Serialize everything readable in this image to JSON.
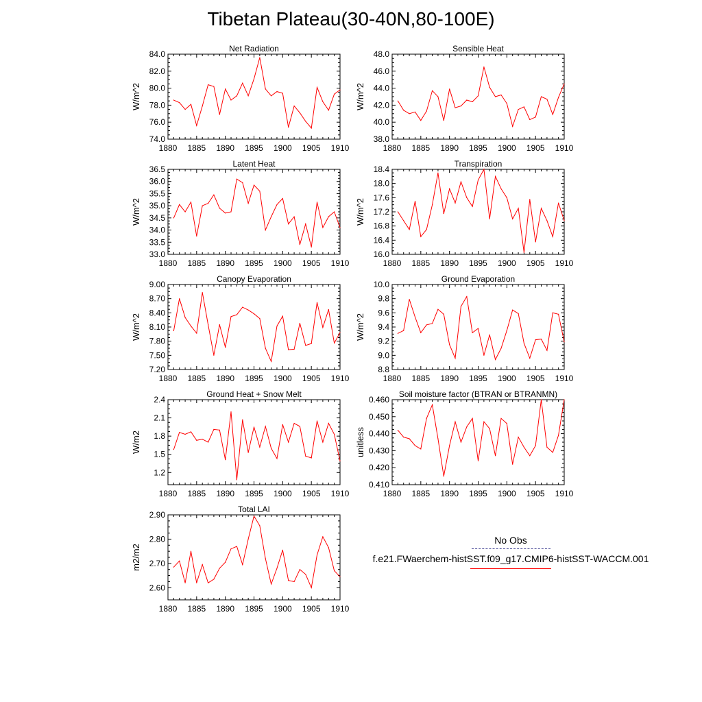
{
  "title": "Tibetan Plateau(30-40N,80-100E)",
  "legend": {
    "obs_label": "No Obs",
    "model_label": "f.e21.FWaerchem-histSST.f09_g17.CMIP6-histSST-WACCM.001",
    "obs_color": "#3b3b8f",
    "model_color": "#ff0000"
  },
  "chart_data": [
    {
      "type": "line",
      "title": "Net Radiation",
      "xlabel": "",
      "ylabel": "W/m^2",
      "xlim": [
        1880,
        1910
      ],
      "ylim": [
        74,
        84
      ],
      "yticks": [
        74,
        76,
        78,
        80,
        82,
        84
      ],
      "ytick_labels": [
        "74.0",
        "76.0",
        "78.0",
        "80.0",
        "82.0",
        "84.0"
      ],
      "xticks": [
        1880,
        1885,
        1890,
        1895,
        1900,
        1905,
        1910
      ],
      "xtick_labels": [
        "1880",
        "1885",
        "1890",
        "1895",
        "1900",
        "1905",
        "1910"
      ],
      "x": [
        1881,
        1882,
        1883,
        1884,
        1885,
        1886,
        1887,
        1888,
        1889,
        1890,
        1891,
        1892,
        1893,
        1894,
        1895,
        1896,
        1897,
        1898,
        1899,
        1900,
        1901,
        1902,
        1903,
        1904,
        1905,
        1906,
        1907,
        1908,
        1909,
        1910
      ],
      "series": [
        {
          "values": [
            78.6,
            78.3,
            77.5,
            78.1,
            75.6,
            77.9,
            80.4,
            80.2,
            76.9,
            79.9,
            78.6,
            79.1,
            80.6,
            79.1,
            81.1,
            83.6,
            79.9,
            79.1,
            79.6,
            79.4,
            75.4,
            77.9,
            77.1,
            76.1,
            75.3,
            80.1,
            78.4,
            77.4,
            79.3,
            79.8
          ],
          "color": "#ff0000"
        }
      ]
    },
    {
      "type": "line",
      "title": "Sensible Heat",
      "xlabel": "",
      "ylabel": "W/m^2",
      "xlim": [
        1880,
        1910
      ],
      "ylim": [
        38,
        48
      ],
      "yticks": [
        38,
        40,
        42,
        44,
        46,
        48
      ],
      "ytick_labels": [
        "38.0",
        "40.0",
        "42.0",
        "44.0",
        "46.0",
        "48.0"
      ],
      "xticks": [
        1880,
        1885,
        1890,
        1895,
        1900,
        1905,
        1910
      ],
      "xtick_labels": [
        "1880",
        "1885",
        "1890",
        "1895",
        "1900",
        "1905",
        "1910"
      ],
      "x": [
        1881,
        1882,
        1883,
        1884,
        1885,
        1886,
        1887,
        1888,
        1889,
        1890,
        1891,
        1892,
        1893,
        1894,
        1895,
        1896,
        1897,
        1898,
        1899,
        1900,
        1901,
        1902,
        1903,
        1904,
        1905,
        1906,
        1907,
        1908,
        1909,
        1910
      ],
      "series": [
        {
          "values": [
            42.5,
            41.4,
            41.0,
            41.2,
            40.2,
            41.3,
            43.7,
            43.0,
            40.2,
            43.9,
            41.7,
            41.9,
            42.6,
            42.4,
            43.1,
            46.5,
            44.1,
            43.0,
            43.2,
            42.2,
            39.5,
            41.5,
            41.8,
            40.3,
            40.6,
            43.0,
            42.7,
            40.9,
            42.9,
            44.5
          ],
          "color": "#ff0000"
        }
      ]
    },
    {
      "type": "line",
      "title": "Latent Heat",
      "xlabel": "",
      "ylabel": "W/m^2",
      "xlim": [
        1880,
        1910
      ],
      "ylim": [
        33,
        36.5
      ],
      "yticks": [
        33,
        33.5,
        34,
        34.5,
        35,
        35.5,
        36,
        36.5
      ],
      "ytick_labels": [
        "33.0",
        "33.5",
        "34.0",
        "34.5",
        "35.0",
        "35.5",
        "36.0",
        "36.5"
      ],
      "xticks": [
        1880,
        1885,
        1890,
        1895,
        1900,
        1905,
        1910
      ],
      "xtick_labels": [
        "1880",
        "1885",
        "1890",
        "1895",
        "1900",
        "1905",
        "1910"
      ],
      "x": [
        1881,
        1882,
        1883,
        1884,
        1885,
        1886,
        1887,
        1888,
        1889,
        1890,
        1891,
        1892,
        1893,
        1894,
        1895,
        1896,
        1897,
        1898,
        1899,
        1900,
        1901,
        1902,
        1903,
        1904,
        1905,
        1906,
        1907,
        1908,
        1909,
        1910
      ],
      "series": [
        {
          "values": [
            34.5,
            35.05,
            34.75,
            35.15,
            33.75,
            35.0,
            35.1,
            35.45,
            34.9,
            34.7,
            34.75,
            36.1,
            35.95,
            35.1,
            35.85,
            35.6,
            34.0,
            34.55,
            35.05,
            35.3,
            34.25,
            34.55,
            33.4,
            34.25,
            33.3,
            35.15,
            34.1,
            34.55,
            34.75,
            34.1
          ],
          "color": "#ff0000"
        }
      ]
    },
    {
      "type": "line",
      "title": "Transpiration",
      "xlabel": "",
      "ylabel": "W/m^2",
      "xlim": [
        1880,
        1910
      ],
      "ylim": [
        16,
        18.4
      ],
      "yticks": [
        16.0,
        16.4,
        16.8,
        17.2,
        17.6,
        18.0,
        18.4
      ],
      "ytick_labels": [
        "16.0",
        "16.4",
        "16.8",
        "17.2",
        "17.6",
        "18.0",
        "18.4"
      ],
      "xticks": [
        1880,
        1885,
        1890,
        1895,
        1900,
        1905,
        1910
      ],
      "xtick_labels": [
        "1880",
        "1885",
        "1890",
        "1895",
        "1900",
        "1905",
        "1910"
      ],
      "x": [
        1881,
        1882,
        1883,
        1884,
        1885,
        1886,
        1887,
        1888,
        1889,
        1890,
        1891,
        1892,
        1893,
        1894,
        1895,
        1896,
        1897,
        1898,
        1899,
        1900,
        1901,
        1902,
        1903,
        1904,
        1905,
        1906,
        1907,
        1908,
        1909,
        1910
      ],
      "series": [
        {
          "values": [
            17.2,
            16.95,
            16.7,
            17.5,
            16.5,
            16.7,
            17.4,
            18.3,
            17.15,
            17.85,
            17.45,
            18.05,
            17.6,
            17.35,
            18.1,
            18.4,
            17.0,
            18.2,
            17.85,
            17.6,
            17.0,
            17.3,
            16.05,
            17.55,
            16.35,
            17.3,
            16.95,
            16.5,
            17.45,
            16.95
          ],
          "color": "#ff0000"
        }
      ]
    },
    {
      "type": "line",
      "title": "Canopy Evaporation",
      "xlabel": "",
      "ylabel": "W/m^2",
      "xlim": [
        1880,
        1910
      ],
      "ylim": [
        7.2,
        9.0
      ],
      "yticks": [
        7.2,
        7.5,
        7.8,
        8.1,
        8.4,
        8.7,
        9.0
      ],
      "ytick_labels": [
        "7.20",
        "7.50",
        "7.80",
        "8.10",
        "8.40",
        "8.70",
        "9.00"
      ],
      "xticks": [
        1880,
        1885,
        1890,
        1895,
        1900,
        1905,
        1910
      ],
      "xtick_labels": [
        "1880",
        "1885",
        "1890",
        "1895",
        "1900",
        "1905",
        "1910"
      ],
      "x": [
        1881,
        1882,
        1883,
        1884,
        1885,
        1886,
        1887,
        1888,
        1889,
        1890,
        1891,
        1892,
        1893,
        1894,
        1895,
        1896,
        1897,
        1898,
        1899,
        1900,
        1901,
        1902,
        1903,
        1904,
        1905,
        1906,
        1907,
        1908,
        1909,
        1910
      ],
      "series": [
        {
          "values": [
            8.02,
            8.7,
            8.3,
            8.12,
            7.97,
            8.83,
            8.15,
            7.5,
            8.15,
            7.67,
            8.32,
            8.36,
            8.52,
            8.46,
            8.38,
            8.28,
            7.65,
            7.37,
            8.12,
            8.33,
            7.62,
            7.63,
            8.18,
            7.71,
            7.75,
            8.62,
            8.09,
            8.47,
            7.76,
            7.98
          ],
          "color": "#ff0000"
        }
      ]
    },
    {
      "type": "line",
      "title": "Ground Evaporation",
      "xlabel": "",
      "ylabel": "W/m^2",
      "xlim": [
        1880,
        1910
      ],
      "ylim": [
        8.8,
        10.0
      ],
      "yticks": [
        8.8,
        9.0,
        9.2,
        9.4,
        9.6,
        9.8,
        10.0
      ],
      "ytick_labels": [
        "8.8",
        "9.0",
        "9.2",
        "9.4",
        "9.6",
        "9.8",
        "10.0"
      ],
      "xticks": [
        1880,
        1885,
        1890,
        1895,
        1900,
        1905,
        1910
      ],
      "xtick_labels": [
        "1880",
        "1885",
        "1890",
        "1895",
        "1900",
        "1905",
        "1910"
      ],
      "x": [
        1881,
        1882,
        1883,
        1884,
        1885,
        1886,
        1887,
        1888,
        1889,
        1890,
        1891,
        1892,
        1893,
        1894,
        1895,
        1896,
        1897,
        1898,
        1899,
        1900,
        1901,
        1902,
        1903,
        1904,
        1905,
        1906,
        1907,
        1908,
        1909,
        1910
      ],
      "series": [
        {
          "values": [
            9.31,
            9.35,
            9.79,
            9.54,
            9.32,
            9.43,
            9.45,
            9.65,
            9.58,
            9.15,
            8.96,
            9.69,
            9.83,
            9.32,
            9.38,
            9.0,
            9.29,
            8.94,
            9.1,
            9.35,
            9.64,
            9.59,
            9.17,
            8.96,
            9.22,
            9.23,
            9.07,
            9.6,
            9.58,
            9.19
          ],
          "color": "#ff0000"
        }
      ]
    },
    {
      "type": "line",
      "title": "Ground Heat + Snow Melt",
      "xlabel": "",
      "ylabel": "W/m2",
      "xlim": [
        1880,
        1910
      ],
      "ylim": [
        1.0,
        2.4
      ],
      "yticks": [
        1.2,
        1.5,
        1.8,
        2.1,
        2.4
      ],
      "ytick_labels": [
        "1.2",
        "1.5",
        "1.8",
        "2.1",
        "2.4"
      ],
      "xticks": [
        1880,
        1885,
        1890,
        1895,
        1900,
        1905,
        1910
      ],
      "xtick_labels": [
        "1880",
        "1885",
        "1890",
        "1895",
        "1900",
        "1905",
        "1910"
      ],
      "x": [
        1881,
        1882,
        1883,
        1884,
        1885,
        1886,
        1887,
        1888,
        1889,
        1890,
        1891,
        1892,
        1893,
        1894,
        1895,
        1896,
        1897,
        1898,
        1899,
        1900,
        1901,
        1902,
        1903,
        1904,
        1905,
        1906,
        1907,
        1908,
        1909,
        1910
      ],
      "series": [
        {
          "values": [
            1.58,
            1.86,
            1.83,
            1.87,
            1.73,
            1.75,
            1.7,
            1.91,
            1.9,
            1.41,
            2.2,
            1.08,
            2.07,
            1.53,
            1.95,
            1.62,
            1.96,
            1.6,
            1.43,
            1.99,
            1.7,
            2.01,
            1.96,
            1.47,
            1.44,
            2.05,
            1.7,
            2.01,
            1.83,
            1.39
          ],
          "color": "#ff0000"
        }
      ]
    },
    {
      "type": "line",
      "title": "Soil moisture factor (BTRAN or BTRANMN)",
      "xlabel": "",
      "ylabel": "unitless",
      "xlim": [
        1880,
        1910
      ],
      "ylim": [
        0.41,
        0.46
      ],
      "yticks": [
        0.41,
        0.42,
        0.43,
        0.44,
        0.45,
        0.46
      ],
      "ytick_labels": [
        "0.410",
        "0.420",
        "0.430",
        "0.440",
        "0.450",
        "0.460"
      ],
      "xticks": [
        1880,
        1885,
        1890,
        1895,
        1900,
        1905,
        1910
      ],
      "xtick_labels": [
        "1880",
        "1885",
        "1890",
        "1895",
        "1900",
        "1905",
        "1910"
      ],
      "x": [
        1881,
        1882,
        1883,
        1884,
        1885,
        1886,
        1887,
        1888,
        1889,
        1890,
        1891,
        1892,
        1893,
        1894,
        1895,
        1896,
        1897,
        1898,
        1899,
        1900,
        1901,
        1902,
        1903,
        1904,
        1905,
        1906,
        1907,
        1908,
        1909,
        1910
      ],
      "series": [
        {
          "values": [
            0.442,
            0.438,
            0.437,
            0.433,
            0.431,
            0.449,
            0.457,
            0.437,
            0.415,
            0.433,
            0.447,
            0.435,
            0.444,
            0.449,
            0.424,
            0.447,
            0.443,
            0.427,
            0.449,
            0.446,
            0.422,
            0.438,
            0.432,
            0.427,
            0.433,
            0.46,
            0.432,
            0.429,
            0.439,
            0.46
          ],
          "color": "#ff0000"
        }
      ]
    },
    {
      "type": "line",
      "title": "Total LAI",
      "xlabel": "",
      "ylabel": "m2/m2",
      "xlim": [
        1880,
        1910
      ],
      "ylim": [
        2.55,
        2.9
      ],
      "yticks": [
        2.6,
        2.7,
        2.8,
        2.9
      ],
      "ytick_labels": [
        "2.60",
        "2.70",
        "2.80",
        "2.90"
      ],
      "xticks": [
        1880,
        1885,
        1890,
        1895,
        1900,
        1905,
        1910
      ],
      "xtick_labels": [
        "1880",
        "1885",
        "1890",
        "1895",
        "1900",
        "1905",
        "1910"
      ],
      "x": [
        1881,
        1882,
        1883,
        1884,
        1885,
        1886,
        1887,
        1888,
        1889,
        1890,
        1891,
        1892,
        1893,
        1894,
        1895,
        1896,
        1897,
        1898,
        1899,
        1900,
        1901,
        1902,
        1903,
        1904,
        1905,
        1906,
        1907,
        1908,
        1909,
        1910
      ],
      "series": [
        {
          "values": [
            2.685,
            2.71,
            2.62,
            2.75,
            2.62,
            2.695,
            2.62,
            2.635,
            2.68,
            2.705,
            2.76,
            2.77,
            2.695,
            2.8,
            2.895,
            2.855,
            2.72,
            2.615,
            2.68,
            2.755,
            2.63,
            2.625,
            2.675,
            2.655,
            2.6,
            2.735,
            2.81,
            2.765,
            2.67,
            2.645
          ],
          "color": "#ff0000"
        }
      ]
    }
  ]
}
